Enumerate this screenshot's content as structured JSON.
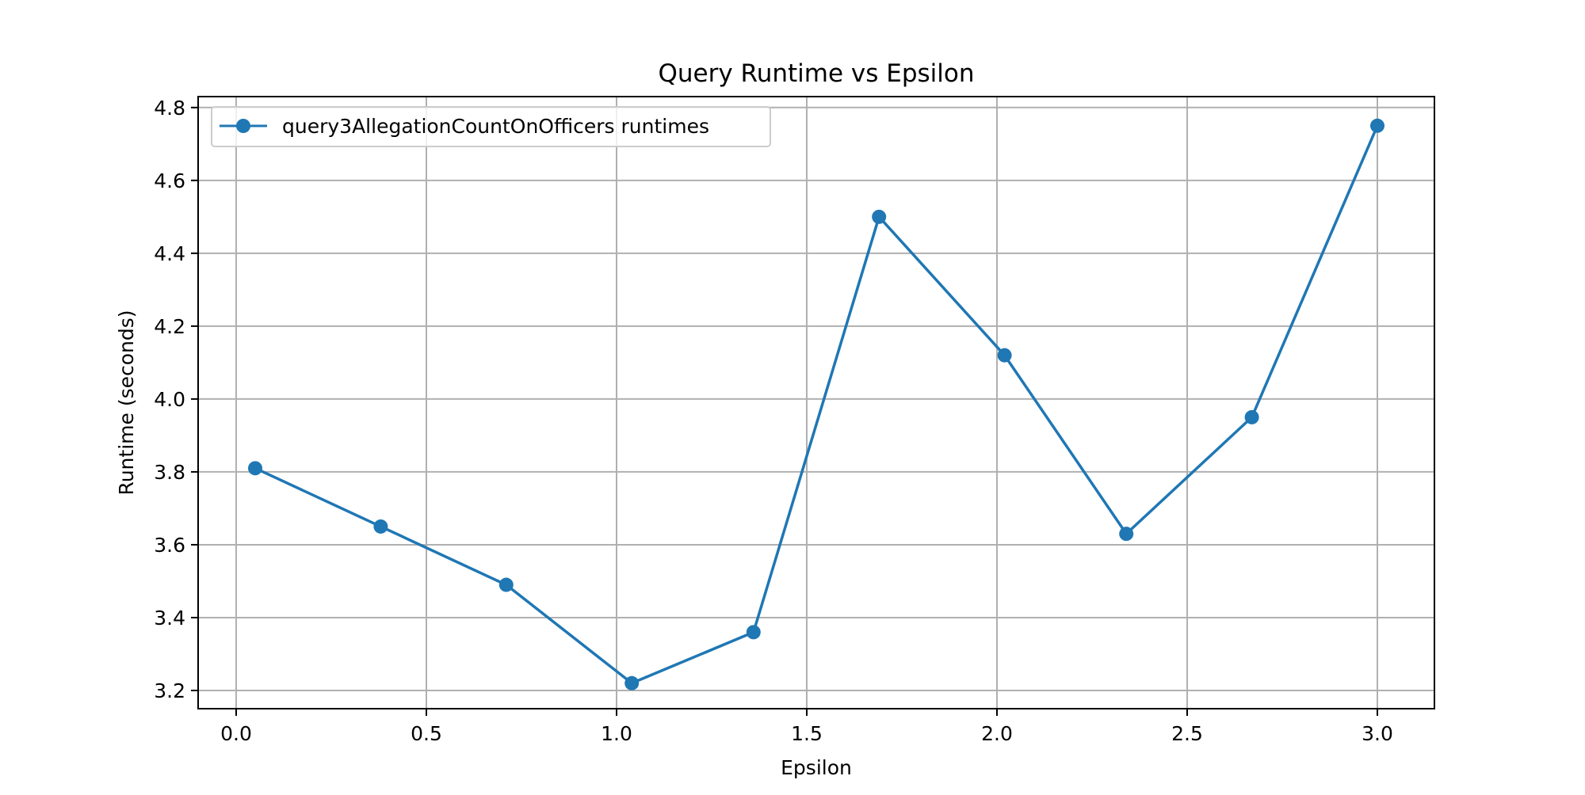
{
  "chart_data": {
    "type": "line",
    "title": "Query Runtime vs Epsilon",
    "xlabel": "Epsilon",
    "ylabel": "Runtime (seconds)",
    "xlim": [
      -0.1,
      3.15
    ],
    "ylim": [
      3.15,
      4.83
    ],
    "x_ticks": [
      "0.0",
      "0.5",
      "1.0",
      "1.5",
      "2.0",
      "2.5",
      "3.0"
    ],
    "y_ticks": [
      "3.2",
      "3.4",
      "3.6",
      "3.8",
      "4.0",
      "4.2",
      "4.4",
      "4.6",
      "4.8"
    ],
    "grid": true,
    "legend_position": "top-left",
    "series": [
      {
        "name": "query3AllegationCountOnOfficers runtimes",
        "color": "#1f77b4",
        "marker": "circle",
        "x": [
          0.05,
          0.38,
          0.71,
          1.04,
          1.36,
          1.69,
          2.02,
          2.34,
          2.67,
          3.0
        ],
        "y": [
          3.81,
          3.65,
          3.49,
          3.22,
          3.36,
          4.5,
          4.12,
          3.63,
          3.95,
          4.75
        ]
      }
    ]
  }
}
